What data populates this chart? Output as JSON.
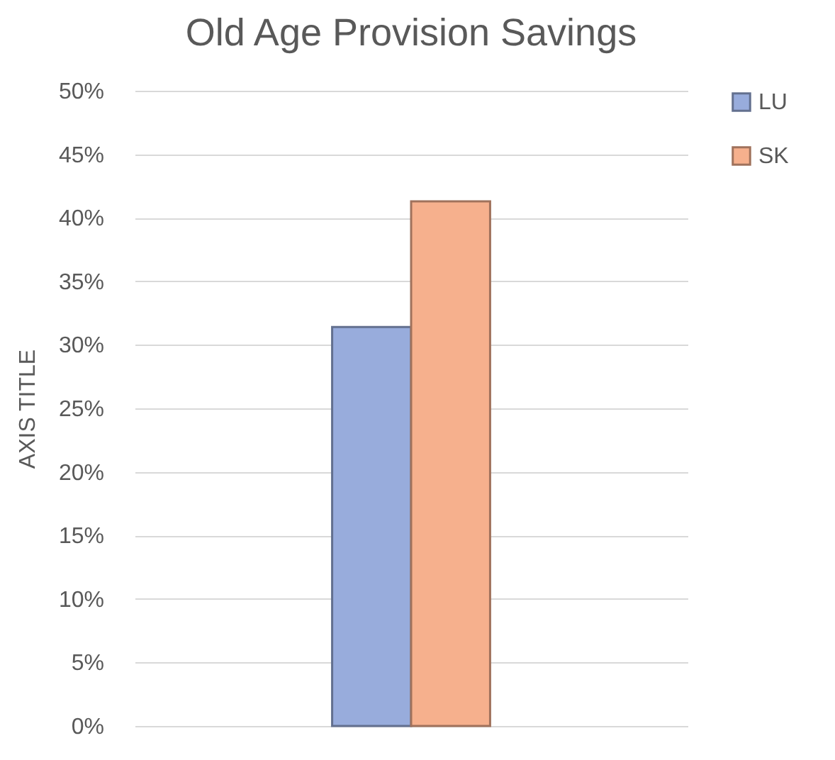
{
  "chart_data": {
    "type": "bar",
    "title": "Old Age Provision Savings",
    "ylabel": "AXIS TITLE",
    "categories": [
      null
    ],
    "series": [
      {
        "name": "LU",
        "color": "#98acdc",
        "values": [
          31.4
        ]
      },
      {
        "name": "SK",
        "color": "#f6b08d",
        "values": [
          41.3
        ]
      }
    ],
    "ylim": [
      0,
      50
    ],
    "yticks": [
      {
        "value": 0,
        "label": "0%"
      },
      {
        "value": 5,
        "label": "5%"
      },
      {
        "value": 10,
        "label": "10%"
      },
      {
        "value": 15,
        "label": "15%"
      },
      {
        "value": 20,
        "label": "20%"
      },
      {
        "value": 25,
        "label": "25%"
      },
      {
        "value": 30,
        "label": "30%"
      },
      {
        "value": 35,
        "label": "35%"
      },
      {
        "value": 40,
        "label": "40%"
      },
      {
        "value": 45,
        "label": "45%"
      },
      {
        "value": 50,
        "label": "50%"
      }
    ],
    "grid": "y",
    "legend": "right"
  }
}
